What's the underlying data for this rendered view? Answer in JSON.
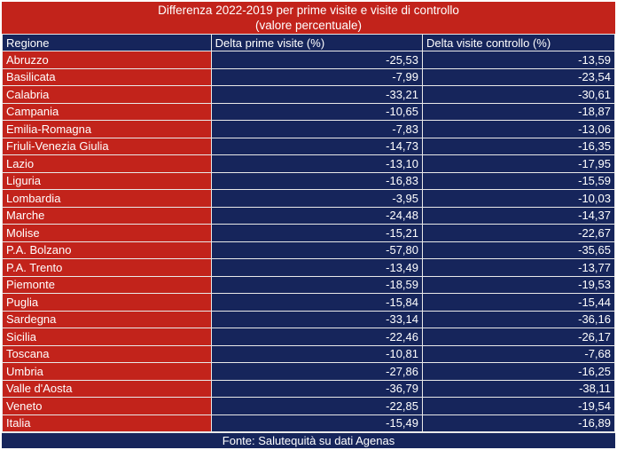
{
  "title": {
    "line1": "Differenza 2022-2019 per prime visite e visite di controllo",
    "line2": "(valore percentuale)"
  },
  "table": {
    "columns": [
      "Regione",
      "Delta prime visite (%)",
      "Delta visite controllo (%)"
    ],
    "rows": [
      [
        "Abruzzo",
        "-25,53",
        "-13,59"
      ],
      [
        "Basilicata",
        "-7,99",
        "-23,54"
      ],
      [
        "Calabria",
        "-33,21",
        "-30,61"
      ],
      [
        "Campania",
        "-10,65",
        "-18,87"
      ],
      [
        "Emilia-Romagna",
        "-7,83",
        "-13,06"
      ],
      [
        "Friuli-Venezia Giulia",
        "-14,73",
        "-16,35"
      ],
      [
        "Lazio",
        "-13,10",
        "-17,95"
      ],
      [
        "Liguria",
        "-16,83",
        "-15,59"
      ],
      [
        "Lombardia",
        "-3,95",
        "-10,03"
      ],
      [
        "Marche",
        "-24,48",
        "-14,37"
      ],
      [
        "Molise",
        "-15,21",
        "-22,67"
      ],
      [
        "P.A. Bolzano",
        "-57,80",
        "-35,65"
      ],
      [
        "P.A. Trento",
        "-13,49",
        "-13,77"
      ],
      [
        "Piemonte",
        "-18,59",
        "-19,53"
      ],
      [
        "Puglia",
        "-15,84",
        "-15,44"
      ],
      [
        "Sardegna",
        "-33,14",
        "-36,16"
      ],
      [
        "Sicilia",
        "-22,46",
        "-26,17"
      ],
      [
        "Toscana",
        "-10,81",
        "-7,68"
      ],
      [
        "Umbria",
        "-27,86",
        "-16,25"
      ],
      [
        "Valle d'Aosta",
        "-36,79",
        "-38,11"
      ],
      [
        "Veneto",
        "-22,85",
        "-19,54"
      ],
      [
        "Italia",
        "-15,49",
        "-16,89"
      ]
    ]
  },
  "footer": {
    "text": "Fonte: Salutequità su dati Agenas"
  },
  "colors": {
    "red": "#c2231b",
    "navy": "#16255b",
    "grid": "#e9e9e9",
    "text": "#ffffff"
  },
  "chart_data": {
    "type": "table",
    "title": "Differenza 2022-2019 per prime visite e visite di controllo (valore percentuale)",
    "columns": [
      "Regione",
      "Delta prime visite (%)",
      "Delta visite controllo (%)"
    ],
    "categories": [
      "Abruzzo",
      "Basilicata",
      "Calabria",
      "Campania",
      "Emilia-Romagna",
      "Friuli-Venezia Giulia",
      "Lazio",
      "Liguria",
      "Lombardia",
      "Marche",
      "Molise",
      "P.A. Bolzano",
      "P.A. Trento",
      "Piemonte",
      "Puglia",
      "Sardegna",
      "Sicilia",
      "Toscana",
      "Umbria",
      "Valle d'Aosta",
      "Veneto",
      "Italia"
    ],
    "series": [
      {
        "name": "Delta prime visite (%)",
        "values": [
          -25.53,
          -7.99,
          -33.21,
          -10.65,
          -7.83,
          -14.73,
          -13.1,
          -16.83,
          -3.95,
          -24.48,
          -15.21,
          -57.8,
          -13.49,
          -18.59,
          -15.84,
          -33.14,
          -22.46,
          -10.81,
          -27.86,
          -36.79,
          -22.85,
          -15.49
        ]
      },
      {
        "name": "Delta visite controllo (%)",
        "values": [
          -13.59,
          -23.54,
          -30.61,
          -18.87,
          -13.06,
          -16.35,
          -17.95,
          -15.59,
          -10.03,
          -14.37,
          -22.67,
          -35.65,
          -13.77,
          -19.53,
          -15.44,
          -36.16,
          -26.17,
          -7.68,
          -16.25,
          -38.11,
          -19.54,
          -16.89
        ]
      }
    ],
    "source": "Fonte: Salutequità su dati Agenas"
  }
}
